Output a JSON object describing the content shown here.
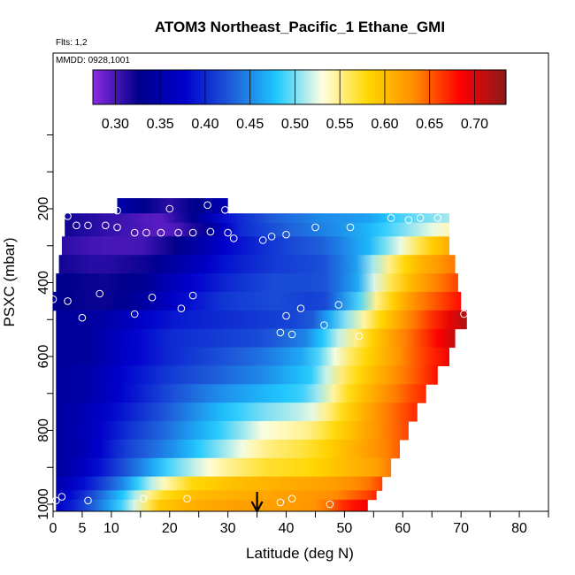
{
  "chart_data": {
    "type": "heatmap",
    "title": "ATOM3 Northeast_Pacific_1 Ethane_GMI",
    "annotations": [
      "Flts: 1,2",
      "MMDD: 0928,1001"
    ],
    "xlabel": "Latitude (deg N)",
    "ylabel": "PSXC (mbar)",
    "xlim": [
      0,
      85
    ],
    "ylim": [
      1000,
      0
    ],
    "x_ticks": [
      0,
      5,
      10,
      20,
      30,
      40,
      50,
      60,
      70,
      80
    ],
    "y_ticks": [
      200,
      400,
      600,
      800,
      1000
    ],
    "arrow_marker_latitude": 35,
    "colorbar": {
      "ticks": [
        0.3,
        0.35,
        0.4,
        0.45,
        0.5,
        0.55,
        0.6,
        0.65,
        0.7
      ],
      "tick_labels": [
        "0.30",
        "0.35",
        "0.40",
        "0.45",
        "0.50",
        "0.55",
        "0.60",
        "0.65",
        "0.70"
      ],
      "range": [
        0.275,
        0.735
      ],
      "colors": [
        "#8a2be2",
        "#00008b",
        "#0000cd",
        "#1e5bd8",
        "#1ec8ff",
        "#ffffe0",
        "#ffd700",
        "#ff8c00",
        "#ff0000",
        "#8b1a1a"
      ]
    },
    "bands": [
      {
        "p": 200,
        "lat_min": 11,
        "lat_max": 30
      },
      {
        "p": 225,
        "lat_min": 2,
        "lat_max": 68
      },
      {
        "p": 250,
        "lat_min": 2,
        "lat_max": 68
      },
      {
        "p": 300,
        "lat_min": 1.5,
        "lat_max": 68
      },
      {
        "p": 350,
        "lat_min": 1,
        "lat_max": 69
      },
      {
        "p": 400,
        "lat_min": 0.5,
        "lat_max": 69.5
      },
      {
        "p": 450,
        "lat_min": 0,
        "lat_max": 70
      },
      {
        "p": 500,
        "lat_min": 0.5,
        "lat_max": 71
      },
      {
        "p": 550,
        "lat_min": 0.5,
        "lat_max": 69
      },
      {
        "p": 600,
        "lat_min": 0.5,
        "lat_max": 68
      },
      {
        "p": 650,
        "lat_min": 0.5,
        "lat_max": 66
      },
      {
        "p": 700,
        "lat_min": 0.5,
        "lat_max": 64
      },
      {
        "p": 750,
        "lat_min": 0.5,
        "lat_max": 62.5
      },
      {
        "p": 800,
        "lat_min": 0.5,
        "lat_max": 61
      },
      {
        "p": 850,
        "lat_min": 0.5,
        "lat_max": 59.5
      },
      {
        "p": 900,
        "lat_min": 0.5,
        "lat_max": 58
      },
      {
        "p": 950,
        "lat_min": 0.5,
        "lat_max": 56.5
      },
      {
        "p": 975,
        "lat_min": 0.5,
        "lat_max": 55.5
      },
      {
        "p": 1000,
        "lat_min": 0.5,
        "lat_max": 54
      }
    ],
    "profiles": [
      {
        "p": 200,
        "lat": [
          11,
          15,
          20,
          25,
          30
        ],
        "v": [
          0.35,
          0.33,
          0.31,
          0.33,
          0.36
        ]
      },
      {
        "p": 225,
        "lat": [
          2,
          8,
          14,
          18,
          24,
          30,
          38,
          46,
          54,
          60,
          68
        ],
        "v": [
          0.32,
          0.31,
          0.3,
          0.29,
          0.33,
          0.39,
          0.43,
          0.45,
          0.46,
          0.49,
          0.51
        ]
      },
      {
        "p": 250,
        "lat": [
          2,
          8,
          14,
          20,
          26,
          32,
          40,
          48,
          54,
          60,
          68
        ],
        "v": [
          0.32,
          0.31,
          0.3,
          0.29,
          0.33,
          0.4,
          0.43,
          0.45,
          0.47,
          0.5,
          0.54
        ]
      },
      {
        "p": 300,
        "lat": [
          1.5,
          8,
          15,
          22,
          30,
          38,
          46,
          54,
          60,
          64,
          68
        ],
        "v": [
          0.31,
          0.3,
          0.3,
          0.33,
          0.38,
          0.41,
          0.43,
          0.47,
          0.53,
          0.58,
          0.61
        ]
      },
      {
        "p": 350,
        "lat": [
          1,
          8,
          15,
          22,
          30,
          38,
          46,
          52,
          56,
          62,
          69
        ],
        "v": [
          0.32,
          0.31,
          0.32,
          0.35,
          0.39,
          0.41,
          0.42,
          0.46,
          0.53,
          0.6,
          0.64
        ]
      },
      {
        "p": 400,
        "lat": [
          0.5,
          8,
          15,
          22,
          30,
          38,
          46,
          52,
          56,
          62,
          69.5
        ],
        "v": [
          0.33,
          0.32,
          0.33,
          0.37,
          0.4,
          0.42,
          0.42,
          0.46,
          0.54,
          0.61,
          0.66
        ]
      },
      {
        "p": 450,
        "lat": [
          0,
          8,
          15,
          22,
          30,
          38,
          46,
          52,
          56,
          62,
          70
        ],
        "v": [
          0.33,
          0.32,
          0.34,
          0.38,
          0.41,
          0.42,
          0.41,
          0.48,
          0.56,
          0.63,
          0.68
        ]
      },
      {
        "p": 500,
        "lat": [
          0.5,
          6,
          12,
          20,
          28,
          36,
          44,
          50,
          56,
          62,
          71
        ],
        "v": [
          0.34,
          0.34,
          0.36,
          0.39,
          0.4,
          0.41,
          0.42,
          0.5,
          0.58,
          0.64,
          0.72
        ]
      },
      {
        "p": 550,
        "lat": [
          0.5,
          6,
          12,
          20,
          28,
          36,
          44,
          50,
          56,
          62,
          69
        ],
        "v": [
          0.34,
          0.34,
          0.37,
          0.4,
          0.41,
          0.42,
          0.45,
          0.53,
          0.6,
          0.65,
          0.71
        ]
      },
      {
        "p": 600,
        "lat": [
          0.5,
          6,
          12,
          20,
          28,
          36,
          44,
          50,
          56,
          62,
          68
        ],
        "v": [
          0.34,
          0.34,
          0.37,
          0.4,
          0.42,
          0.44,
          0.47,
          0.55,
          0.6,
          0.65,
          0.69
        ]
      },
      {
        "p": 650,
        "lat": [
          0.5,
          6,
          12,
          20,
          28,
          36,
          44,
          50,
          56,
          62,
          66
        ],
        "v": [
          0.34,
          0.35,
          0.38,
          0.41,
          0.43,
          0.45,
          0.48,
          0.56,
          0.61,
          0.65,
          0.68
        ]
      },
      {
        "p": 700,
        "lat": [
          0.5,
          6,
          12,
          20,
          28,
          36,
          44,
          50,
          56,
          62,
          64
        ],
        "v": [
          0.34,
          0.35,
          0.38,
          0.42,
          0.45,
          0.47,
          0.49,
          0.57,
          0.62,
          0.66,
          0.67
        ]
      },
      {
        "p": 750,
        "lat": [
          0.5,
          6,
          12,
          20,
          28,
          36,
          44,
          50,
          56,
          62.5
        ],
        "v": [
          0.34,
          0.36,
          0.39,
          0.43,
          0.47,
          0.5,
          0.52,
          0.58,
          0.63,
          0.67
        ]
      },
      {
        "p": 800,
        "lat": [
          0.5,
          6,
          12,
          20,
          28,
          36,
          44,
          50,
          56,
          61
        ],
        "v": [
          0.34,
          0.36,
          0.4,
          0.44,
          0.48,
          0.53,
          0.55,
          0.59,
          0.63,
          0.66
        ]
      },
      {
        "p": 850,
        "lat": [
          0.5,
          6,
          12,
          20,
          28,
          36,
          44,
          50,
          56,
          59.5
        ],
        "v": [
          0.34,
          0.36,
          0.41,
          0.45,
          0.5,
          0.55,
          0.57,
          0.6,
          0.63,
          0.65
        ]
      },
      {
        "p": 900,
        "lat": [
          0.5,
          6,
          12,
          20,
          28,
          36,
          44,
          50,
          56,
          58
        ],
        "v": [
          0.34,
          0.37,
          0.42,
          0.49,
          0.54,
          0.57,
          0.58,
          0.6,
          0.62,
          0.64
        ]
      },
      {
        "p": 950,
        "lat": [
          0.5,
          6,
          12,
          18,
          24,
          32,
          40,
          48,
          54,
          56.5
        ],
        "v": [
          0.35,
          0.39,
          0.45,
          0.53,
          0.58,
          0.6,
          0.61,
          0.62,
          0.64,
          0.66
        ]
      },
      {
        "p": 975,
        "lat": [
          0.5,
          6,
          12,
          18,
          24,
          32,
          40,
          48,
          54,
          55.5
        ],
        "v": [
          0.36,
          0.41,
          0.48,
          0.57,
          0.6,
          0.61,
          0.62,
          0.63,
          0.66,
          0.67
        ]
      },
      {
        "p": 1000,
        "lat": [
          0.5,
          6,
          12,
          18,
          24,
          32,
          40,
          46,
          50,
          54
        ],
        "v": [
          0.37,
          0.42,
          0.49,
          0.59,
          0.61,
          0.62,
          0.62,
          0.63,
          0.67,
          0.69
        ]
      }
    ],
    "observations": [
      {
        "lat": 11,
        "p": 205
      },
      {
        "lat": 20,
        "p": 200
      },
      {
        "lat": 26.5,
        "p": 190
      },
      {
        "lat": 29.5,
        "p": 203
      },
      {
        "lat": 2.5,
        "p": 220
      },
      {
        "lat": 4,
        "p": 245
      },
      {
        "lat": 6,
        "p": 245
      },
      {
        "lat": 9,
        "p": 245
      },
      {
        "lat": 11,
        "p": 250
      },
      {
        "lat": 14,
        "p": 265
      },
      {
        "lat": 16,
        "p": 265
      },
      {
        "lat": 18.5,
        "p": 265
      },
      {
        "lat": 21.5,
        "p": 265
      },
      {
        "lat": 24,
        "p": 265
      },
      {
        "lat": 27,
        "p": 262
      },
      {
        "lat": 30,
        "p": 265
      },
      {
        "lat": 31,
        "p": 280
      },
      {
        "lat": 36,
        "p": 285
      },
      {
        "lat": 37.5,
        "p": 275
      },
      {
        "lat": 40,
        "p": 270
      },
      {
        "lat": 45,
        "p": 250
      },
      {
        "lat": 51,
        "p": 250
      },
      {
        "lat": 58,
        "p": 225
      },
      {
        "lat": 61,
        "p": 230
      },
      {
        "lat": 63,
        "p": 225
      },
      {
        "lat": 66,
        "p": 225
      },
      {
        "lat": 0,
        "p": 445
      },
      {
        "lat": 2.5,
        "p": 450
      },
      {
        "lat": 8,
        "p": 430
      },
      {
        "lat": 17,
        "p": 440
      },
      {
        "lat": 24,
        "p": 435
      },
      {
        "lat": 22,
        "p": 470
      },
      {
        "lat": 14,
        "p": 485
      },
      {
        "lat": 5,
        "p": 495
      },
      {
        "lat": 40,
        "p": 490
      },
      {
        "lat": 42.5,
        "p": 470
      },
      {
        "lat": 49,
        "p": 460
      },
      {
        "lat": 46.5,
        "p": 515
      },
      {
        "lat": 39,
        "p": 535
      },
      {
        "lat": 41,
        "p": 540
      },
      {
        "lat": 52.5,
        "p": 545
      },
      {
        "lat": 70.5,
        "p": 485
      },
      {
        "lat": 0.5,
        "p": 990
      },
      {
        "lat": 1.5,
        "p": 980
      },
      {
        "lat": 6,
        "p": 990
      },
      {
        "lat": 15.5,
        "p": 985
      },
      {
        "lat": 23,
        "p": 985
      },
      {
        "lat": 39,
        "p": 995
      },
      {
        "lat": 41,
        "p": 985
      },
      {
        "lat": 47.5,
        "p": 1000
      }
    ]
  }
}
